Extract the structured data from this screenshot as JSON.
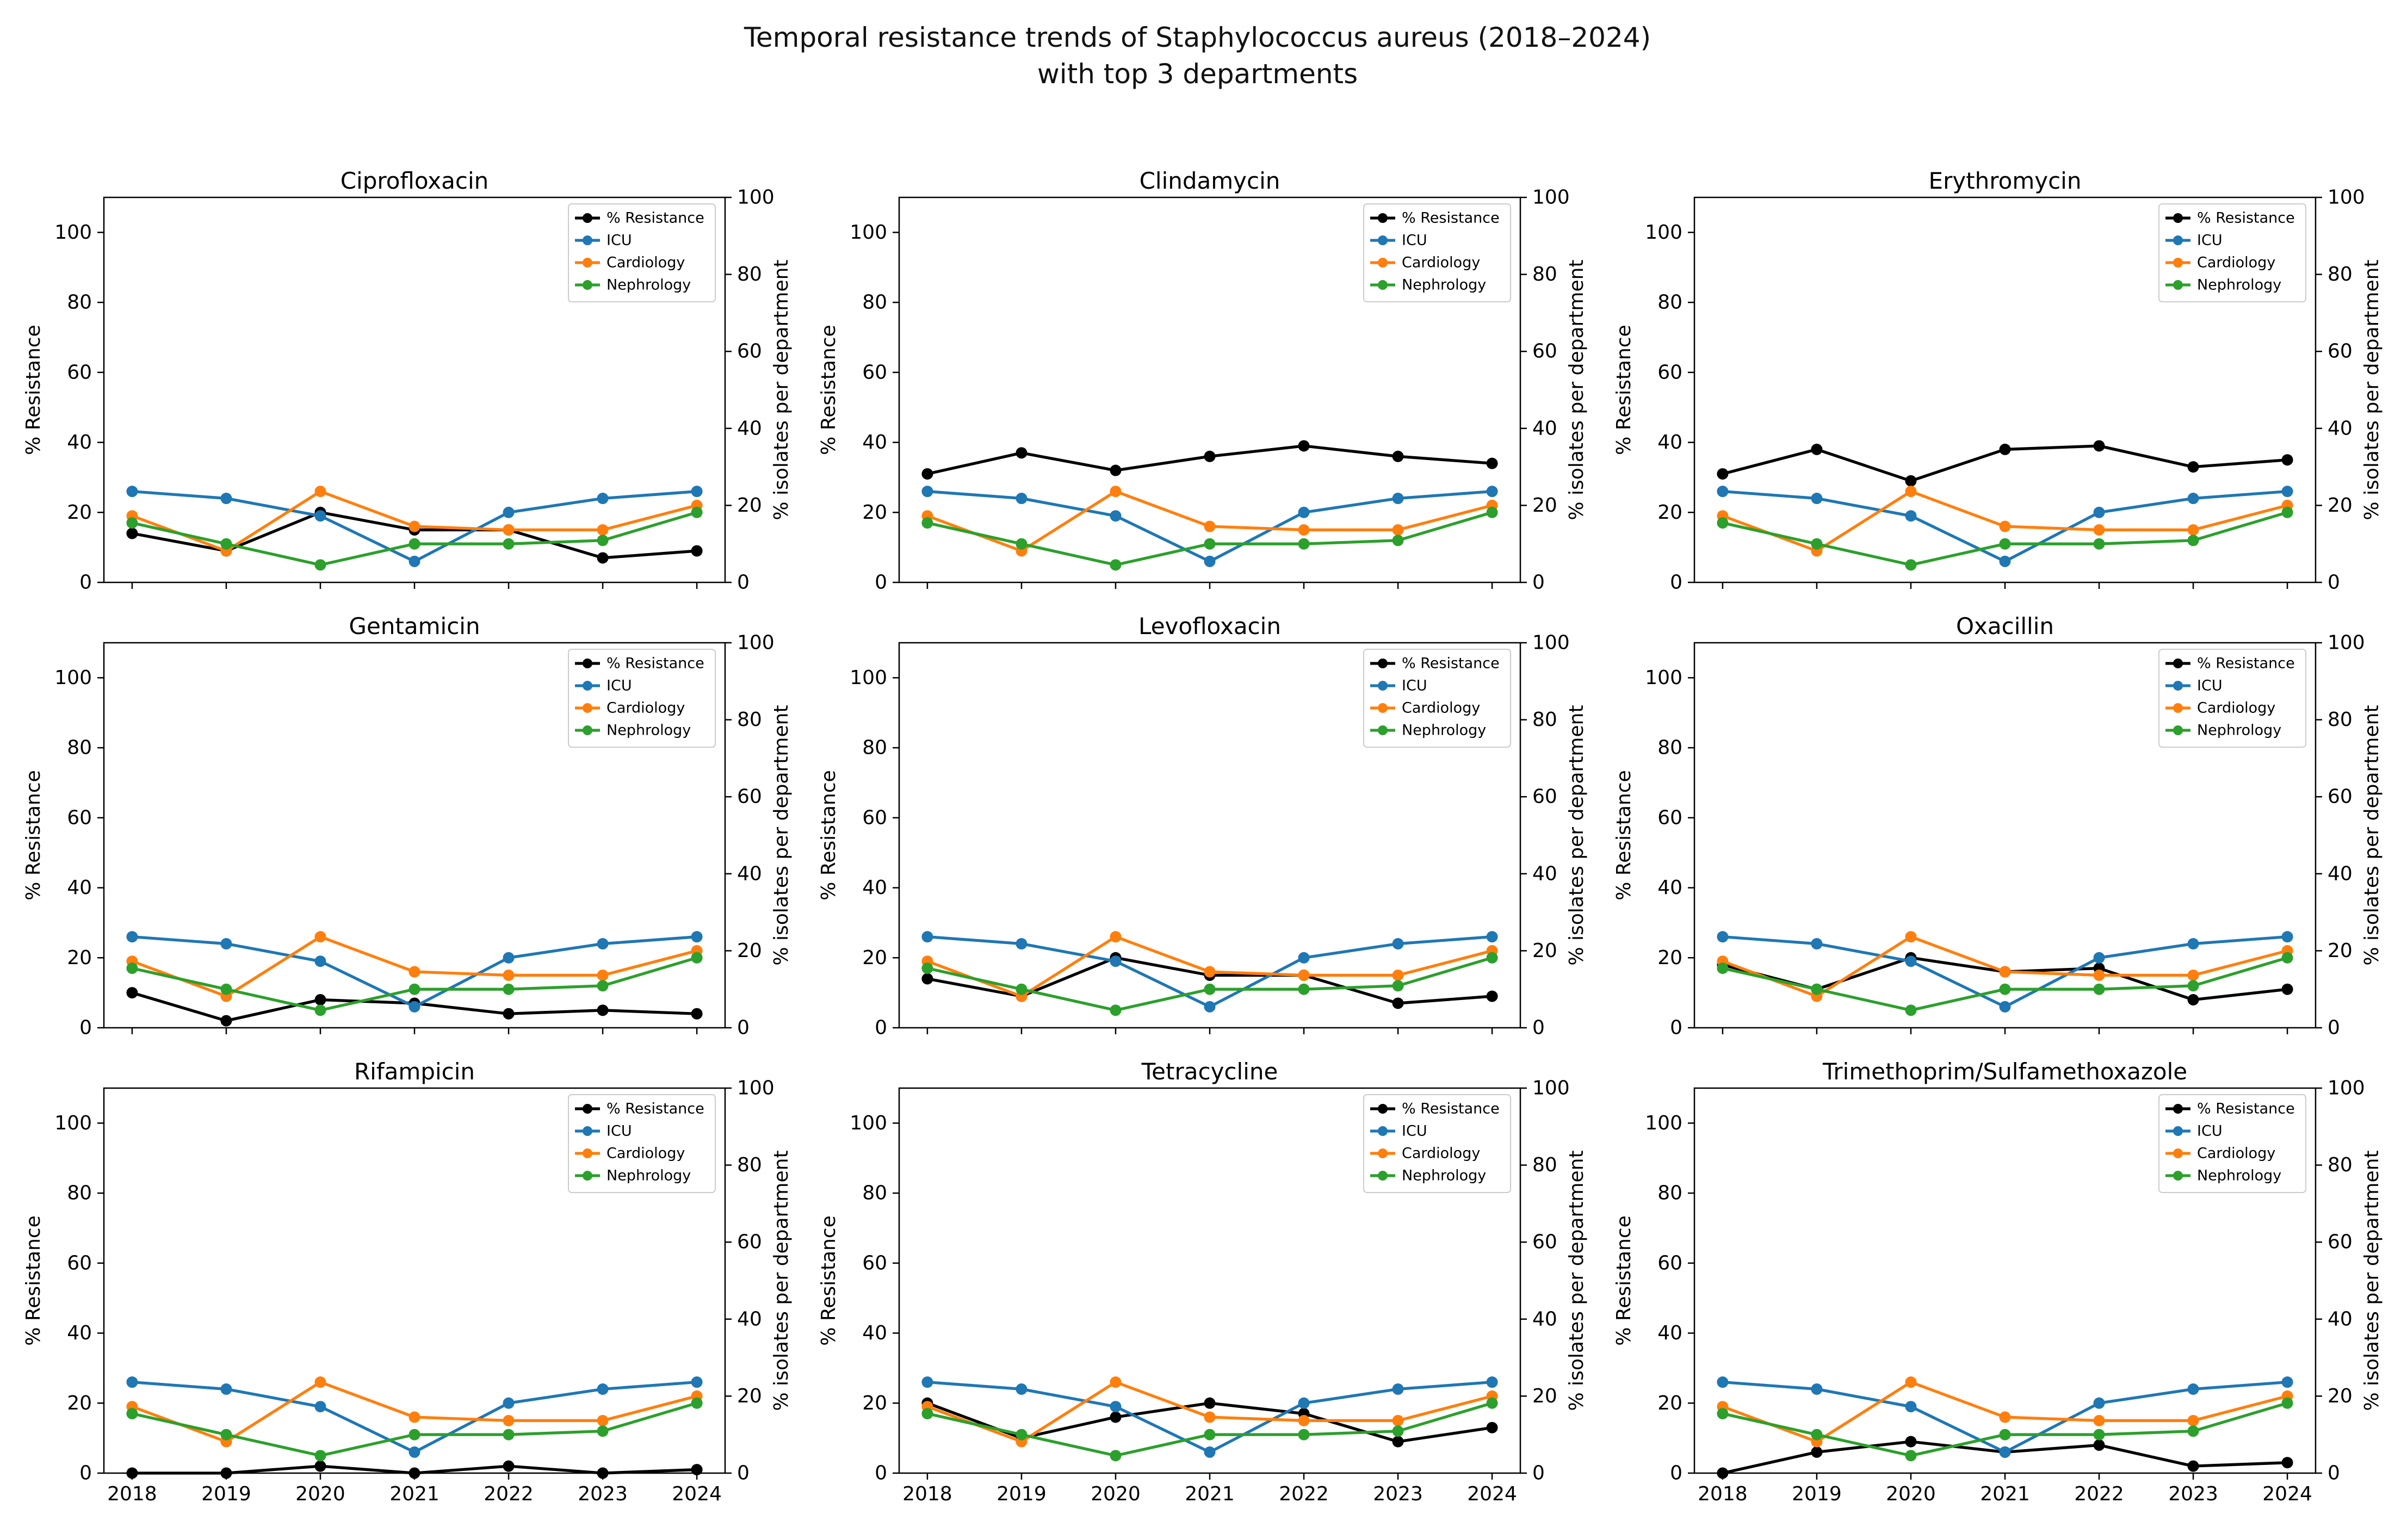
{
  "figure": {
    "title_line1": "Temporal resistance trends of Staphylococcus aureus (2018–2024)",
    "title_line2": "with top 3 departments"
  },
  "chart_data": {
    "type": "line",
    "grid": "3x3 subplots",
    "x": [
      2018,
      2019,
      2020,
      2021,
      2022,
      2023,
      2024
    ],
    "x_tick_labels": [
      "2018",
      "2019",
      "2020",
      "2021",
      "2022",
      "2023",
      "2024"
    ],
    "x_tick_labels_shown_on": "bottom row only",
    "ylabel_left": "% Resistance",
    "ylabel_right": "% isolates per department",
    "yticks_left": [
      0,
      20,
      40,
      60,
      80,
      100
    ],
    "yticks_right": [
      0,
      20,
      40,
      60,
      80,
      100
    ],
    "ylim_left": [
      0,
      110
    ],
    "ylim_right": [
      0,
      100
    ],
    "grid_lines": "off",
    "legend_position": "upper right (inside each subplot)",
    "legend_entries": [
      "% Resistance",
      "ICU",
      "Cardiology",
      "Nephrology"
    ],
    "colors": {
      "resistance": "#000000",
      "icu": "#1f77b4",
      "cardiology": "#ff7f0e",
      "nephrology": "#2ca02c",
      "legend_border": "#cccccc",
      "spine": "#000000"
    },
    "department_series": [
      {
        "name": "ICU",
        "color": "#1f77b4",
        "axis": "right",
        "values": [
          26,
          24,
          19,
          6,
          20,
          24,
          26
        ]
      },
      {
        "name": "Cardiology",
        "color": "#ff7f0e",
        "axis": "right",
        "values": [
          19,
          9,
          26,
          16,
          15,
          15,
          22
        ]
      },
      {
        "name": "Nephrology",
        "color": "#2ca02c",
        "axis": "right",
        "values": [
          17,
          11,
          5,
          11,
          11,
          12,
          20
        ]
      }
    ],
    "panels": [
      {
        "title": "Ciprofloxacin",
        "resistance_series": "% Resistance",
        "resistance": [
          14,
          9,
          20,
          15,
          15,
          7,
          9
        ]
      },
      {
        "title": "Clindamycin",
        "resistance_series": "% Resistance",
        "resistance": [
          31,
          37,
          32,
          36,
          39,
          36,
          34
        ]
      },
      {
        "title": "Erythromycin",
        "resistance_series": "% Resistance",
        "resistance": [
          31,
          38,
          29,
          38,
          39,
          33,
          35
        ]
      },
      {
        "title": "Gentamicin",
        "resistance_series": "% Resistance",
        "resistance": [
          10,
          2,
          8,
          7,
          4,
          5,
          4
        ]
      },
      {
        "title": "Levofloxacin",
        "resistance_series": "% Resistance",
        "resistance": [
          14,
          9,
          20,
          15,
          15,
          7,
          9
        ]
      },
      {
        "title": "Oxacillin",
        "resistance_series": "% Resistance",
        "resistance": [
          18,
          11,
          20,
          16,
          17,
          8,
          11
        ]
      },
      {
        "title": "Rifampicin",
        "resistance_series": "% Resistance",
        "resistance": [
          0,
          0,
          2,
          0,
          2,
          0,
          1
        ]
      },
      {
        "title": "Tetracycline",
        "resistance_series": "% Resistance",
        "resistance": [
          20,
          10,
          16,
          20,
          17,
          9,
          13
        ]
      },
      {
        "title": "Trimethoprim/Sulfamethoxazole",
        "resistance_series": "% Resistance",
        "resistance": [
          0,
          6,
          9,
          6,
          8,
          2,
          3
        ]
      }
    ]
  }
}
